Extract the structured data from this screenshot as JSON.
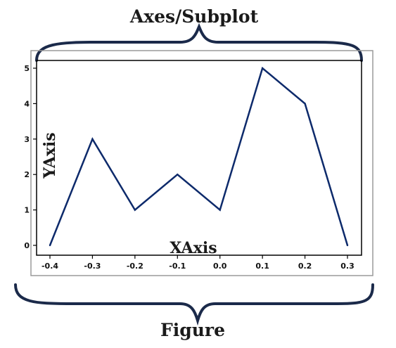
{
  "labels": {
    "axes_subplot": "Axes/Subplot",
    "figure": "Figure",
    "x_axis": "XAxis",
    "y_axis": "YAxis"
  },
  "colors": {
    "line": "#0d2a6b",
    "brace": "#1b2a4a",
    "frame": "#9a9a9a",
    "axes": "#000000"
  },
  "chart_data": {
    "type": "line",
    "x": [
      -0.4,
      -0.3,
      -0.2,
      -0.1,
      0.0,
      0.1,
      0.2,
      0.3
    ],
    "series": [
      {
        "values": [
          0,
          3,
          1,
          2,
          1,
          5,
          4,
          0
        ]
      }
    ],
    "x_ticks": [
      "-0.4",
      "-0.3",
      "-0.2",
      "-0.1",
      "0.0",
      "0.1",
      "0.2",
      "0.3"
    ],
    "y_ticks": [
      "0",
      "1",
      "2",
      "3",
      "4",
      "5"
    ],
    "xlim": [
      -0.4,
      0.3
    ],
    "ylim": [
      0,
      5
    ],
    "grid": false
  }
}
